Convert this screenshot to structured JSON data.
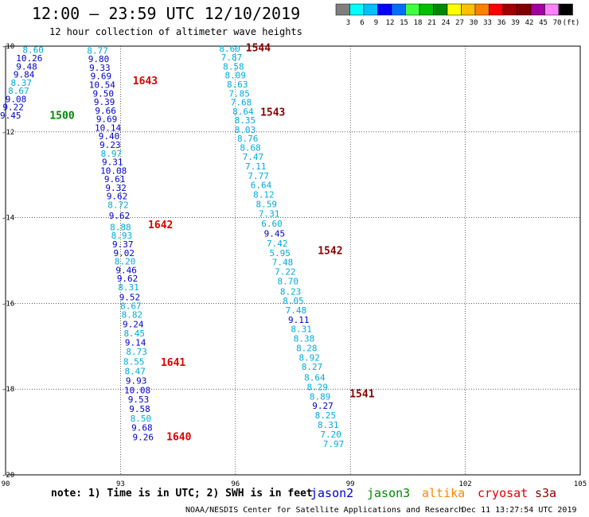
{
  "title": "12:00 – 23:59 UTC 12/10/2019",
  "subtitle": "12 hour collection of altimeter wave heights",
  "map": {
    "lon_range": [
      90,
      105
    ],
    "lat_range": [
      -20,
      -10
    ],
    "x_ticks": [
      "90",
      "93",
      "96",
      "99",
      "102",
      "105"
    ],
    "y_ticks": [
      "-10",
      "-12",
      "-14",
      "-16",
      "-18",
      "-20"
    ]
  },
  "colorbar": {
    "labels": [
      "3",
      "6",
      "9",
      "12",
      "15",
      "18",
      "21",
      "24",
      "27",
      "30",
      "33",
      "36",
      "39",
      "42",
      "45",
      "70",
      "(ft)"
    ],
    "colors": [
      "#7f7f7f",
      "#00ffff",
      "#00bfff",
      "#0000ff",
      "#006fff",
      "#40ff40",
      "#00c000",
      "#008800",
      "#ffff00",
      "#ffc000",
      "#ff8000",
      "#ff0000",
      "#a00000",
      "#800000",
      "#a000a0",
      "#ff80ff",
      "#000000"
    ]
  },
  "tracks": [
    {
      "pass": "1500",
      "pass_color": "#008800",
      "satellite": "jason3",
      "points": [
        {
          "lon": 90.72,
          "lat": -10.08,
          "swh": "8.60",
          "color": "#00aadd"
        },
        {
          "lon": 90.62,
          "lat": -10.28,
          "swh": "10.26",
          "color": "#0000cc"
        },
        {
          "lon": 90.55,
          "lat": -10.47,
          "swh": "9.48",
          "color": "#0000cc"
        },
        {
          "lon": 90.48,
          "lat": -10.66,
          "swh": "9.84",
          "color": "#0000cc"
        },
        {
          "lon": 90.41,
          "lat": -10.85,
          "swh": "8.37",
          "color": "#00aadd"
        },
        {
          "lon": 90.34,
          "lat": -11.04,
          "swh": "8.67",
          "color": "#00aadd"
        },
        {
          "lon": 90.27,
          "lat": -11.23,
          "swh": "9.08",
          "color": "#0000cc"
        },
        {
          "lon": 90.2,
          "lat": -11.42,
          "swh": "9.22",
          "color": "#0000cc"
        },
        {
          "lon": 90.13,
          "lat": -11.61,
          "swh": "9.45",
          "color": "#0000cc"
        }
      ],
      "label_pos": {
        "lon": 91.15,
        "lat": -11.62
      }
    },
    {
      "pass": "1643",
      "pass_color": "#dd0000",
      "satellite": "cryosat",
      "points": [
        {
          "lon": 92.4,
          "lat": -10.1,
          "swh": "8.77",
          "color": "#00aadd"
        },
        {
          "lon": 92.43,
          "lat": -10.3,
          "swh": "9.80",
          "color": "#0000cc"
        },
        {
          "lon": 92.46,
          "lat": -10.5,
          "swh": "9.33",
          "color": "#0000cc"
        },
        {
          "lon": 92.49,
          "lat": -10.7,
          "swh": "9.69",
          "color": "#0000cc"
        },
        {
          "lon": 92.52,
          "lat": -10.9,
          "swh": "10.54",
          "color": "#0000cc"
        },
        {
          "lon": 92.55,
          "lat": -11.1,
          "swh": "9.50",
          "color": "#0000cc"
        },
        {
          "lon": 92.58,
          "lat": -11.3,
          "swh": "9.39",
          "color": "#0000cc"
        },
        {
          "lon": 92.61,
          "lat": -11.5,
          "swh": "9.66",
          "color": "#0000cc"
        },
        {
          "lon": 92.64,
          "lat": -11.7,
          "swh": "9.69",
          "color": "#0000cc"
        },
        {
          "lon": 92.67,
          "lat": -11.9,
          "swh": "10.14",
          "color": "#0000cc"
        },
        {
          "lon": 92.7,
          "lat": -12.1,
          "swh": "9.40",
          "color": "#0000cc"
        },
        {
          "lon": 92.73,
          "lat": -12.3,
          "swh": "9.23",
          "color": "#0000cc"
        },
        {
          "lon": 92.76,
          "lat": -12.5,
          "swh": "8.97",
          "color": "#00aadd"
        },
        {
          "lon": 92.79,
          "lat": -12.7,
          "swh": "9.31",
          "color": "#0000cc"
        },
        {
          "lon": 92.82,
          "lat": -12.9,
          "swh": "10.08",
          "color": "#0000cc"
        },
        {
          "lon": 92.85,
          "lat": -13.1,
          "swh": "9.61",
          "color": "#0000cc"
        },
        {
          "lon": 92.88,
          "lat": -13.3,
          "swh": "9.32",
          "color": "#0000cc"
        },
        {
          "lon": 92.91,
          "lat": -13.5,
          "swh": "9.62",
          "color": "#0000cc"
        },
        {
          "lon": 92.94,
          "lat": -13.7,
          "swh": "8.72",
          "color": "#00aadd"
        },
        {
          "lon": 92.97,
          "lat": -13.95,
          "swh": "9.62",
          "color": "#0000cc"
        }
      ],
      "label_pos": {
        "lon": 93.32,
        "lat": -10.82
      }
    },
    {
      "pass": "1642",
      "pass_color": "#dd0000",
      "satellite": "cryosat",
      "points": [
        {
          "lon": 93.0,
          "lat": -14.22,
          "swh": "8.88",
          "color": "#00aadd"
        },
        {
          "lon": 93.03,
          "lat": -14.42,
          "swh": "8.93",
          "color": "#00aadd"
        },
        {
          "lon": 93.06,
          "lat": -14.62,
          "swh": "9.37",
          "color": "#0000cc"
        },
        {
          "lon": 93.09,
          "lat": -14.82,
          "swh": "9.02",
          "color": "#0000cc"
        },
        {
          "lon": 93.12,
          "lat": -15.02,
          "swh": "8.20",
          "color": "#00aadd"
        },
        {
          "lon": 93.15,
          "lat": -15.22,
          "swh": "9.46",
          "color": "#0000cc"
        },
        {
          "lon": 93.18,
          "lat": -15.42,
          "swh": "9.62",
          "color": "#0000cc"
        },
        {
          "lon": 93.21,
          "lat": -15.62,
          "swh": "8.31",
          "color": "#00aadd"
        },
        {
          "lon": 93.24,
          "lat": -15.85,
          "swh": "9.52",
          "color": "#0000cc"
        },
        {
          "lon": 93.27,
          "lat": -16.06,
          "swh": "8.67",
          "color": "#00aadd"
        },
        {
          "lon": 93.3,
          "lat": -16.26,
          "swh": "8.82",
          "color": "#00aadd"
        },
        {
          "lon": 93.33,
          "lat": -16.48,
          "swh": "9.24",
          "color": "#0000cc"
        },
        {
          "lon": 93.36,
          "lat": -16.7,
          "swh": "8.45",
          "color": "#00aadd"
        },
        {
          "lon": 93.39,
          "lat": -16.91,
          "swh": "9.14",
          "color": "#0000cc"
        },
        {
          "lon": 93.42,
          "lat": -17.12,
          "swh": "8.73",
          "color": "#00aadd"
        }
      ],
      "label_pos": {
        "lon": 93.72,
        "lat": -14.17
      }
    },
    {
      "pass": "1641",
      "pass_color": "#dd0000",
      "satellite": "cryosat",
      "points": [
        {
          "lon": 93.35,
          "lat": -17.36,
          "swh": "8.55",
          "color": "#00aadd"
        },
        {
          "lon": 93.38,
          "lat": -17.58,
          "swh": "8.47",
          "color": "#00aadd"
        },
        {
          "lon": 93.41,
          "lat": -17.8,
          "swh": "9.93",
          "color": "#0000cc"
        },
        {
          "lon": 93.44,
          "lat": -18.02,
          "swh": "10.08",
          "color": "#0000cc"
        },
        {
          "lon": 93.47,
          "lat": -18.24,
          "swh": "9.53",
          "color": "#0000cc"
        },
        {
          "lon": 93.5,
          "lat": -18.46,
          "swh": "9.58",
          "color": "#0000cc"
        },
        {
          "lon": 93.53,
          "lat": -18.68,
          "swh": "8.50",
          "color": "#00aadd"
        },
        {
          "lon": 93.56,
          "lat": -18.9,
          "swh": "9.68",
          "color": "#0000cc"
        },
        {
          "lon": 93.59,
          "lat": -19.12,
          "swh": "9.26",
          "color": "#0000cc"
        }
      ],
      "label_pos": {
        "lon": 94.05,
        "lat": -17.38
      }
    },
    {
      "pass": "1640",
      "pass_color": "#dd0000",
      "satellite": "cryosat",
      "points": [],
      "label_pos": {
        "lon": 94.2,
        "lat": -19.12
      }
    },
    {
      "pass": "1544",
      "pass_color": "#880000",
      "satellite": "s3a",
      "points": [
        {
          "lon": 95.85,
          "lat": -10.06,
          "swh": "8.60",
          "color": "#00aadd"
        },
        {
          "lon": 95.9,
          "lat": -10.26,
          "swh": "7.87",
          "color": "#00aadd"
        },
        {
          "lon": 95.95,
          "lat": -10.47,
          "swh": "8.58",
          "color": "#00aadd"
        },
        {
          "lon": 96.0,
          "lat": -10.68,
          "swh": "8.09",
          "color": "#00aadd"
        },
        {
          "lon": 96.05,
          "lat": -10.89,
          "swh": "8.63",
          "color": "#00aadd"
        },
        {
          "lon": 96.1,
          "lat": -11.1,
          "swh": "7.85",
          "color": "#00aadd"
        },
        {
          "lon": 96.15,
          "lat": -11.31,
          "swh": "7.68",
          "color": "#00aadd"
        },
        {
          "lon": 96.2,
          "lat": -11.52,
          "swh": "8.64",
          "color": "#00aadd"
        },
        {
          "lon": 96.25,
          "lat": -11.73,
          "swh": "8.35",
          "color": "#00aadd"
        }
      ],
      "label_pos": {
        "lon": 96.27,
        "lat": -10.05
      }
    },
    {
      "pass": "1543",
      "pass_color": "#880000",
      "satellite": "s3a",
      "points": [
        {
          "lon": 96.25,
          "lat": -11.95,
          "swh": "8.03",
          "color": "#00aadd"
        },
        {
          "lon": 96.32,
          "lat": -12.15,
          "swh": "8.76",
          "color": "#00aadd"
        },
        {
          "lon": 96.39,
          "lat": -12.37,
          "swh": "8.68",
          "color": "#00aadd"
        },
        {
          "lon": 96.46,
          "lat": -12.58,
          "swh": "7.47",
          "color": "#00aadd"
        },
        {
          "lon": 96.53,
          "lat": -12.8,
          "swh": "7.11",
          "color": "#00aadd"
        },
        {
          "lon": 96.6,
          "lat": -13.02,
          "swh": "7.77",
          "color": "#00aadd"
        },
        {
          "lon": 96.67,
          "lat": -13.24,
          "swh": "6.64",
          "color": "#00aadd"
        },
        {
          "lon": 96.74,
          "lat": -13.46,
          "swh": "8.12",
          "color": "#00aadd"
        },
        {
          "lon": 96.81,
          "lat": -13.68,
          "swh": "8.59",
          "color": "#00aadd"
        },
        {
          "lon": 96.88,
          "lat": -13.91,
          "swh": "7.31",
          "color": "#00aadd"
        },
        {
          "lon": 96.95,
          "lat": -14.14,
          "swh": "6.60",
          "color": "#00aadd"
        },
        {
          "lon": 97.02,
          "lat": -14.37,
          "swh": "9.45",
          "color": "#0000cc"
        },
        {
          "lon": 97.09,
          "lat": -14.6,
          "swh": "7.42",
          "color": "#00aadd"
        },
        {
          "lon": 97.16,
          "lat": -14.82,
          "swh": "5.95",
          "color": "#00aadd"
        },
        {
          "lon": 97.23,
          "lat": -15.04,
          "swh": "7.48",
          "color": "#00aadd"
        },
        {
          "lon": 97.3,
          "lat": -15.26,
          "swh": "7.22",
          "color": "#00aadd"
        },
        {
          "lon": 97.37,
          "lat": -15.48,
          "swh": "8.70",
          "color": "#00aadd"
        }
      ],
      "label_pos": {
        "lon": 96.65,
        "lat": -11.55
      }
    },
    {
      "pass": "1542",
      "pass_color": "#880000",
      "satellite": "s3a",
      "points": [
        {
          "lon": 97.44,
          "lat": -15.72,
          "swh": "8.23",
          "color": "#00aadd"
        },
        {
          "lon": 97.51,
          "lat": -15.94,
          "swh": "8.05",
          "color": "#00aadd"
        },
        {
          "lon": 97.58,
          "lat": -16.16,
          "swh": "7.48",
          "color": "#00aadd"
        },
        {
          "lon": 97.65,
          "lat": -16.38,
          "swh": "9.11",
          "color": "#0000cc"
        },
        {
          "lon": 97.72,
          "lat": -16.6,
          "swh": "8.31",
          "color": "#00aadd"
        },
        {
          "lon": 97.79,
          "lat": -16.82,
          "swh": "8.38",
          "color": "#00aadd"
        },
        {
          "lon": 97.86,
          "lat": -17.04,
          "swh": "8.28",
          "color": "#00aadd"
        },
        {
          "lon": 97.93,
          "lat": -17.26,
          "swh": "8.92",
          "color": "#00aadd"
        },
        {
          "lon": 98.0,
          "lat": -17.48,
          "swh": "8.27",
          "color": "#00aadd"
        }
      ],
      "label_pos": {
        "lon": 98.15,
        "lat": -14.78
      }
    },
    {
      "pass": "1541",
      "pass_color": "#880000",
      "satellite": "s3a",
      "points": [
        {
          "lon": 98.07,
          "lat": -17.73,
          "swh": "8.64",
          "color": "#00aadd"
        },
        {
          "lon": 98.14,
          "lat": -17.95,
          "swh": "8.29",
          "color": "#00aadd"
        },
        {
          "lon": 98.21,
          "lat": -18.17,
          "swh": "8.89",
          "color": "#00aadd"
        },
        {
          "lon": 98.28,
          "lat": -18.39,
          "swh": "9.27",
          "color": "#0000cc"
        },
        {
          "lon": 98.35,
          "lat": -18.61,
          "swh": "8.25",
          "color": "#00aadd"
        },
        {
          "lon": 98.42,
          "lat": -18.83,
          "swh": "8.31",
          "color": "#00aadd"
        },
        {
          "lon": 98.49,
          "lat": -19.05,
          "swh": "7.20",
          "color": "#00aadd"
        },
        {
          "lon": 98.56,
          "lat": -19.28,
          "swh": "7.97",
          "color": "#00aadd"
        }
      ],
      "label_pos": {
        "lon": 98.98,
        "lat": -18.12
      }
    }
  ],
  "note": "note: 1) Time is in UTC; 2) SWH is in feet",
  "satellite_legend": [
    {
      "name": "jason2",
      "color": "#0000cc"
    },
    {
      "name": "jason3",
      "color": "#008800"
    },
    {
      "name": "altika",
      "color": "#ff8800"
    },
    {
      "name": "cryosat",
      "color": "#dd0000"
    },
    {
      "name": "s3a",
      "color": "#880000"
    }
  ],
  "footer": {
    "source": "NOAA/NESDIS Center for Satellite Applications and Research",
    "timestamp": "Dec 11 13:27:54 UTC 2019"
  }
}
